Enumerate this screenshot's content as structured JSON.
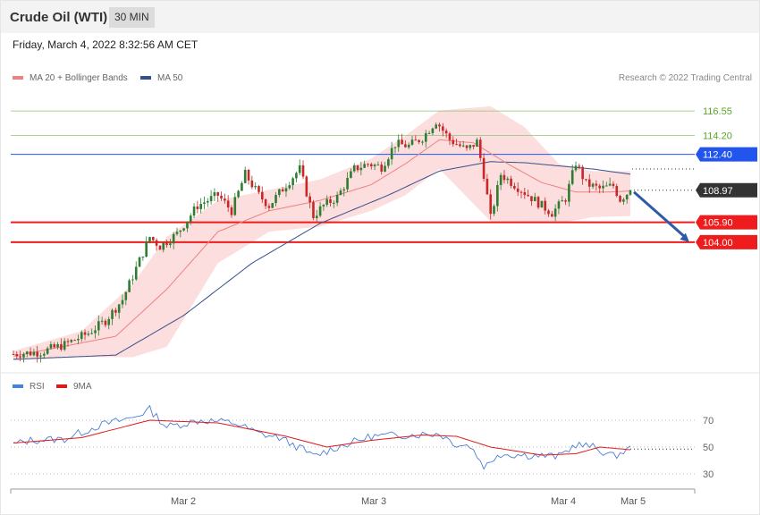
{
  "header": {
    "title": "Crude Oil (WTI)",
    "timeframe": "30 MIN"
  },
  "date_line": "Friday, March 4, 2022 8:32:56 AM CET",
  "legend": {
    "ma20": "MA 20 + Bollinger Bands",
    "ma50": "MA 50",
    "copyright": "Research © 2022 Trading Central"
  },
  "rsi_legend": {
    "rsi": "RSI",
    "ma9": "9MA"
  },
  "colors": {
    "up": "#2e7d32",
    "down": "#c62828",
    "band": "#fbd8d8",
    "ma20": "#f08080",
    "ma50": "#34508c",
    "rsi": "#4a7fd8",
    "ma9": "#e01818",
    "resistance_green": "#8dc56c",
    "support_red": "#ee1c1c",
    "blue_level": "#2255ee",
    "arrow": "#2e5aa8"
  },
  "chart_data": [
    {
      "type": "candlestick",
      "title": "Crude Oil (WTI)",
      "x_tick_labels": [
        "Mar 2",
        "Mar 3",
        "Mar 4",
        "Mar 5"
      ],
      "ylim": [
        93,
        117.5
      ],
      "price_levels": [
        {
          "label": "116.55",
          "value": 116.55,
          "kind": "resistance"
        },
        {
          "label": "114.20",
          "value": 114.2,
          "kind": "resistance"
        },
        {
          "label": "112.40",
          "value": 112.4,
          "kind": "pivot"
        },
        {
          "label": "108.97",
          "value": 108.97,
          "kind": "last_price"
        },
        {
          "label": "105.90",
          "value": 105.9,
          "kind": "support"
        },
        {
          "label": "104.00",
          "value": 104.0,
          "kind": "support"
        }
      ],
      "target_arrow": {
        "from": 108.8,
        "to": 104.0
      },
      "anchors": [
        {
          "i": 0,
          "c": 93.3
        },
        {
          "i": 8,
          "c": 93.5
        },
        {
          "i": 15,
          "c": 94.2
        },
        {
          "i": 22,
          "c": 95.3
        },
        {
          "i": 27,
          "c": 96.5
        },
        {
          "i": 32,
          "c": 98.5
        },
        {
          "i": 36,
          "c": 101.5
        },
        {
          "i": 40,
          "c": 104.5
        },
        {
          "i": 43,
          "c": 103.6
        },
        {
          "i": 48,
          "c": 104.8
        },
        {
          "i": 54,
          "c": 107.5
        },
        {
          "i": 60,
          "c": 108.5
        },
        {
          "i": 64,
          "c": 107.0
        },
        {
          "i": 68,
          "c": 110.5
        },
        {
          "i": 72,
          "c": 108.5
        },
        {
          "i": 75,
          "c": 107.5
        },
        {
          "i": 80,
          "c": 109.5
        },
        {
          "i": 84,
          "c": 111.0
        },
        {
          "i": 88,
          "c": 106.5
        },
        {
          "i": 91,
          "c": 107.5
        },
        {
          "i": 95,
          "c": 108.3
        },
        {
          "i": 100,
          "c": 111.0
        },
        {
          "i": 104,
          "c": 111.5
        },
        {
          "i": 108,
          "c": 111.2
        },
        {
          "i": 112,
          "c": 113.4
        },
        {
          "i": 116,
          "c": 113.2
        },
        {
          "i": 120,
          "c": 114.0
        },
        {
          "i": 124,
          "c": 115.6
        },
        {
          "i": 128,
          "c": 113.8
        },
        {
          "i": 133,
          "c": 112.8
        },
        {
          "i": 136,
          "c": 113.6
        },
        {
          "i": 138,
          "c": 110.5
        },
        {
          "i": 140,
          "c": 106.3
        },
        {
          "i": 143,
          "c": 110.5
        },
        {
          "i": 147,
          "c": 109.5
        },
        {
          "i": 151,
          "c": 108.5
        },
        {
          "i": 155,
          "c": 107.5
        },
        {
          "i": 158,
          "c": 106.8
        },
        {
          "i": 162,
          "c": 108.2
        },
        {
          "i": 165,
          "c": 111.6
        },
        {
          "i": 168,
          "c": 109.6
        },
        {
          "i": 172,
          "c": 109.1
        },
        {
          "i": 176,
          "c": 109.4
        },
        {
          "i": 178,
          "c": 108.1
        },
        {
          "i": 181,
          "c": 108.97
        }
      ],
      "ma20": [
        {
          "i": 0,
          "y": 93.1
        },
        {
          "i": 30,
          "y": 95.0
        },
        {
          "i": 45,
          "y": 99.5
        },
        {
          "i": 60,
          "y": 105.0
        },
        {
          "i": 75,
          "y": 107.0
        },
        {
          "i": 90,
          "y": 108.0
        },
        {
          "i": 105,
          "y": 109.5
        },
        {
          "i": 115,
          "y": 111.5
        },
        {
          "i": 125,
          "y": 113.8
        },
        {
          "i": 135,
          "y": 113.5
        },
        {
          "i": 145,
          "y": 111.5
        },
        {
          "i": 155,
          "y": 109.7
        },
        {
          "i": 165,
          "y": 108.8
        },
        {
          "i": 175,
          "y": 108.8
        },
        {
          "i": 181,
          "y": 108.9
        }
      ],
      "bollinger": [
        {
          "i": 0,
          "u": 93.6,
          "l": 92.7
        },
        {
          "i": 20,
          "u": 95.5,
          "l": 93.0
        },
        {
          "i": 35,
          "u": 100.0,
          "l": 93.0
        },
        {
          "i": 45,
          "u": 104.5,
          "l": 94.0
        },
        {
          "i": 60,
          "u": 108.0,
          "l": 102.0
        },
        {
          "i": 75,
          "u": 109.0,
          "l": 105.0
        },
        {
          "i": 90,
          "u": 110.0,
          "l": 105.5
        },
        {
          "i": 105,
          "u": 112.0,
          "l": 107.0
        },
        {
          "i": 115,
          "u": 114.2,
          "l": 108.5
        },
        {
          "i": 125,
          "u": 116.6,
          "l": 111.0
        },
        {
          "i": 140,
          "u": 117.0,
          "l": 106.0
        },
        {
          "i": 150,
          "u": 115.0,
          "l": 106.0
        },
        {
          "i": 160,
          "u": 111.5,
          "l": 105.8
        },
        {
          "i": 170,
          "u": 110.8,
          "l": 106.4
        },
        {
          "i": 181,
          "u": 110.8,
          "l": 106.5
        }
      ],
      "ma50": [
        {
          "i": 0,
          "y": 92.8
        },
        {
          "i": 30,
          "y": 93.2
        },
        {
          "i": 50,
          "y": 97.0
        },
        {
          "i": 70,
          "y": 102.0
        },
        {
          "i": 90,
          "y": 105.8
        },
        {
          "i": 110,
          "y": 108.5
        },
        {
          "i": 125,
          "y": 110.8
        },
        {
          "i": 140,
          "y": 111.7
        },
        {
          "i": 150,
          "y": 111.6
        },
        {
          "i": 160,
          "y": 111.3
        },
        {
          "i": 170,
          "y": 111.0
        },
        {
          "i": 181,
          "y": 110.5
        }
      ]
    },
    {
      "type": "line",
      "title": "RSI",
      "yticks": [
        70,
        50,
        30
      ],
      "ylim": [
        20,
        90
      ],
      "rsi": [
        {
          "i": 0,
          "y": 52
        },
        {
          "i": 5,
          "y": 55
        },
        {
          "i": 15,
          "y": 56
        },
        {
          "i": 25,
          "y": 66
        },
        {
          "i": 35,
          "y": 72
        },
        {
          "i": 40,
          "y": 78
        },
        {
          "i": 45,
          "y": 65
        },
        {
          "i": 55,
          "y": 70
        },
        {
          "i": 65,
          "y": 68
        },
        {
          "i": 72,
          "y": 60
        },
        {
          "i": 78,
          "y": 57
        },
        {
          "i": 85,
          "y": 48
        },
        {
          "i": 88,
          "y": 43
        },
        {
          "i": 95,
          "y": 50
        },
        {
          "i": 105,
          "y": 58
        },
        {
          "i": 115,
          "y": 59
        },
        {
          "i": 125,
          "y": 60
        },
        {
          "i": 130,
          "y": 52
        },
        {
          "i": 134,
          "y": 51
        },
        {
          "i": 138,
          "y": 36
        },
        {
          "i": 140,
          "y": 38
        },
        {
          "i": 142,
          "y": 45
        },
        {
          "i": 150,
          "y": 44
        },
        {
          "i": 160,
          "y": 43
        },
        {
          "i": 165,
          "y": 52
        },
        {
          "i": 170,
          "y": 50
        },
        {
          "i": 176,
          "y": 43
        },
        {
          "i": 181,
          "y": 49
        }
      ],
      "ma9": [
        {
          "i": 0,
          "y": 53
        },
        {
          "i": 20,
          "y": 57
        },
        {
          "i": 40,
          "y": 70
        },
        {
          "i": 60,
          "y": 68
        },
        {
          "i": 80,
          "y": 58
        },
        {
          "i": 92,
          "y": 50
        },
        {
          "i": 105,
          "y": 55
        },
        {
          "i": 120,
          "y": 59
        },
        {
          "i": 130,
          "y": 58
        },
        {
          "i": 140,
          "y": 50
        },
        {
          "i": 155,
          "y": 44
        },
        {
          "i": 165,
          "y": 45
        },
        {
          "i": 172,
          "y": 50
        },
        {
          "i": 181,
          "y": 48
        }
      ]
    }
  ]
}
